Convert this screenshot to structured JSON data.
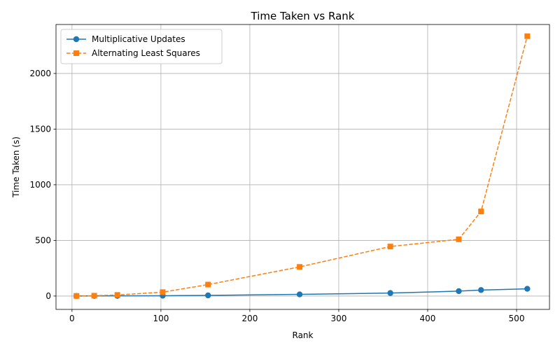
{
  "chart_data": {
    "type": "line",
    "title": "Time Taken vs Rank",
    "xlabel": "Rank",
    "ylabel": "Time Taken (s)",
    "xlim": [
      -18,
      537
    ],
    "ylim": [
      -120,
      2440
    ],
    "xticks": [
      0,
      100,
      200,
      300,
      400,
      500
    ],
    "yticks": [
      0,
      500,
      1000,
      1500,
      2000
    ],
    "grid": true,
    "legend_position": "top-left",
    "series": [
      {
        "name": "Multiplicative Updates",
        "color": "#1f77b4",
        "marker": "circle",
        "linestyle": "solid",
        "x": [
          5,
          25,
          51,
          102,
          153,
          256,
          358,
          435,
          460,
          512
        ],
        "y": [
          0.5,
          1,
          1.5,
          3,
          6,
          15,
          27,
          44,
          54,
          65
        ]
      },
      {
        "name": "Alternating Least Squares",
        "color": "#ff7f0e",
        "marker": "square",
        "linestyle": "dashed",
        "x": [
          5,
          25,
          51,
          102,
          153,
          256,
          358,
          435,
          460,
          512
        ],
        "y": [
          1,
          3,
          10,
          35,
          103,
          262,
          445,
          510,
          760,
          2335
        ]
      }
    ]
  }
}
